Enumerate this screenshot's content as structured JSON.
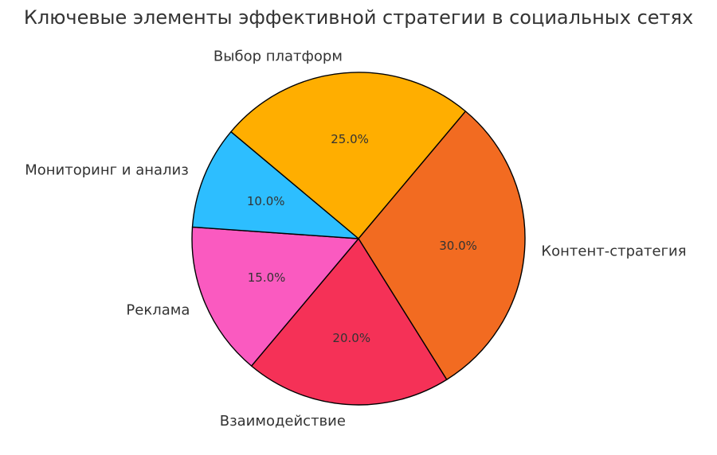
{
  "chart_data": {
    "type": "pie",
    "title": "Ключевые элементы эффективной стратегии в социальных сетях",
    "start_angle_deg": 140,
    "direction": "clockwise",
    "categories": [
      "Выбор платформ",
      "Контент-стратегия",
      "Взаимодействие",
      "Реклама",
      "Мониторинг и анализ"
    ],
    "values": [
      25,
      30,
      20,
      15,
      10
    ],
    "percent_labels": [
      "25.0%",
      "30.0%",
      "20.0%",
      "15.0%",
      "10.0%"
    ],
    "colors": [
      "#FFAE00",
      "#F26B21",
      "#F53157",
      "#FA5AC0",
      "#2DBEFF"
    ]
  }
}
